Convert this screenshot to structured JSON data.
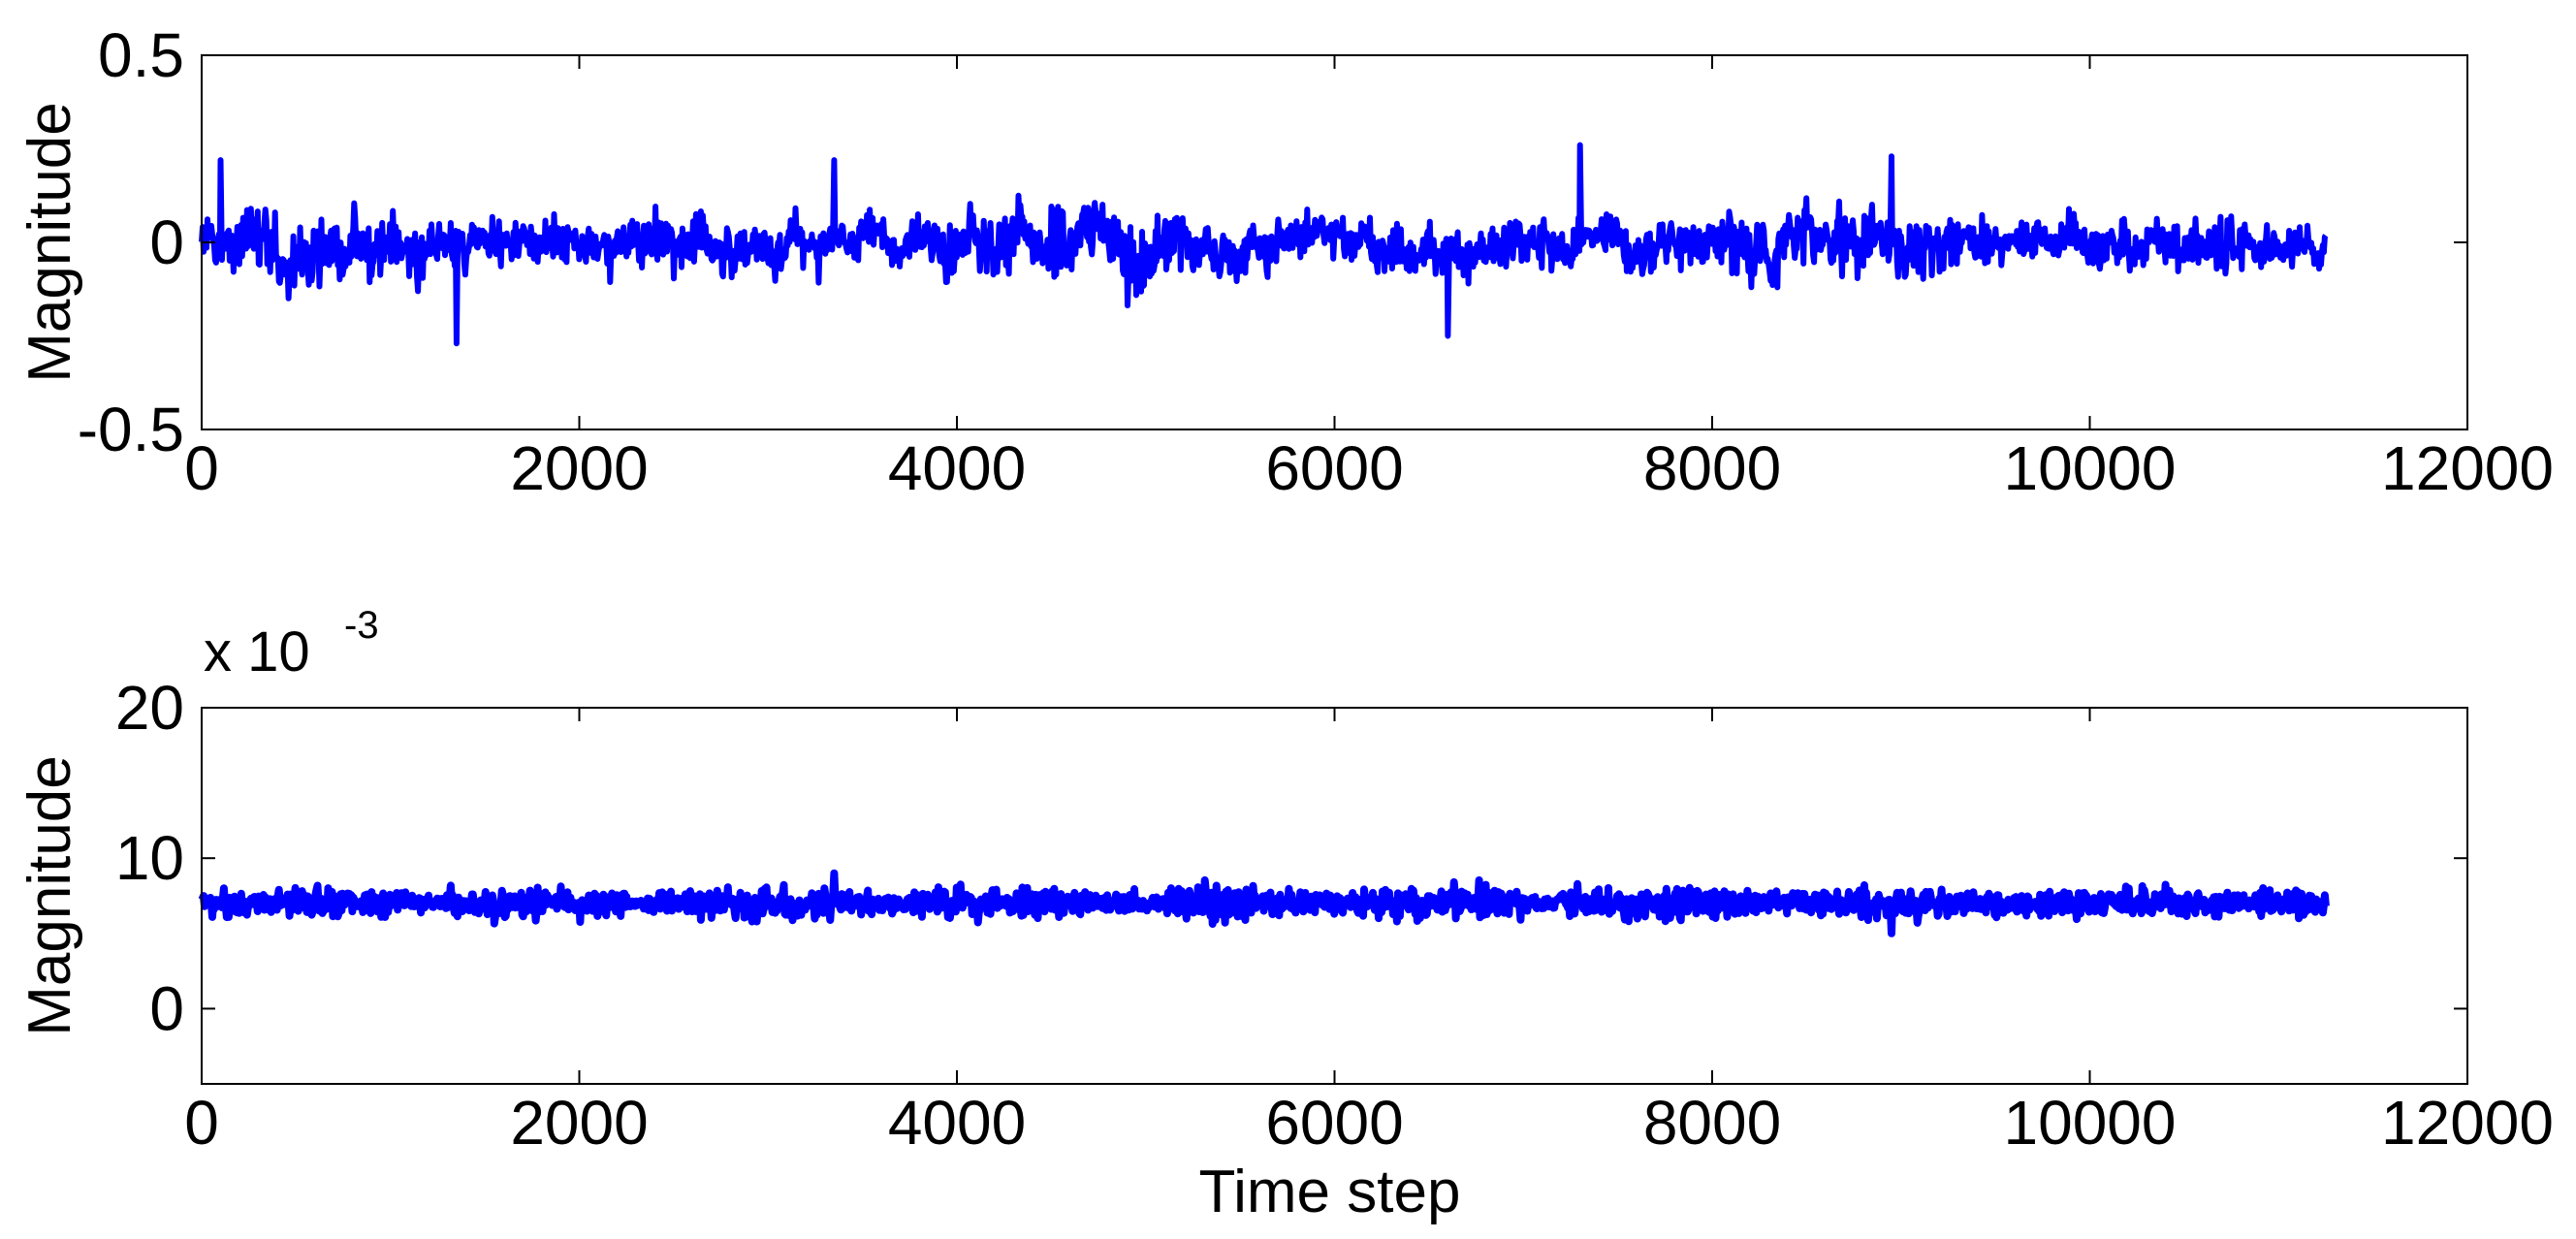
{
  "chart_data": [
    {
      "type": "line",
      "title": "",
      "xlabel": "",
      "ylabel": "Magnitude",
      "xlim": [
        0,
        12000
      ],
      "ylim": [
        -0.5,
        0.5
      ],
      "xticks": [
        "0",
        "2000",
        "4000",
        "6000",
        "8000",
        "10000",
        "12000"
      ],
      "yticks": [
        "-0.5",
        "0",
        "0.5"
      ],
      "grid": false,
      "color": "#0000ff",
      "series": [
        {
          "x_range": [
            0,
            11250
          ],
          "samples": 11250,
          "description": "zero-mean noisy signal",
          "mean": 0.0,
          "typical_range": [
            -0.2,
            0.2
          ],
          "peaks": [
            {
              "x": 100,
              "y": 0.22
            },
            {
              "x": 1350,
              "y": -0.27
            },
            {
              "x": 3350,
              "y": 0.22
            },
            {
              "x": 6600,
              "y": -0.25
            },
            {
              "x": 7300,
              "y": 0.26
            },
            {
              "x": 8950,
              "y": 0.23
            }
          ]
        }
      ]
    },
    {
      "type": "line",
      "title": "",
      "xlabel": "Time step",
      "ylabel": "Magnitude",
      "xlim": [
        0,
        12000
      ],
      "ylim": [
        -5,
        20
      ],
      "y_multiplier": "x 10",
      "y_multiplier_exponent": "-3",
      "xticks": [
        "0",
        "2000",
        "4000",
        "6000",
        "8000",
        "10000",
        "12000"
      ],
      "yticks": [
        "0",
        "10",
        "20"
      ],
      "grid": false,
      "color": "#0000ff",
      "series": [
        {
          "x_range": [
            0,
            11250
          ],
          "samples": 11250,
          "description": "narrow band around 7 (x10^-3)",
          "mean": 7.0,
          "typical_range": [
            5.6,
            8.4
          ],
          "peaks": [
            {
              "x": 3350,
              "y": 9.0
            },
            {
              "x": 8950,
              "y": 9.0
            },
            {
              "x": 8950,
              "y": 5.0
            }
          ]
        }
      ]
    }
  ]
}
